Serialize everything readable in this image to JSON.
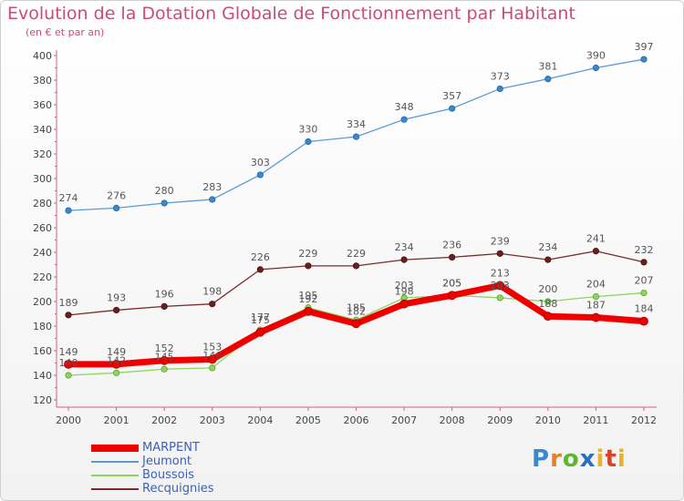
{
  "title": "Evolution de la Dotation Globale de Fonctionnement par Habitant",
  "subtitle": "(en € et par an)",
  "logo": "Proxiti",
  "chart_data": {
    "type": "line",
    "categories": [
      "2000",
      "2001",
      "2002",
      "2003",
      "2004",
      "2005",
      "2006",
      "2007",
      "2008",
      "2009",
      "2010",
      "2011",
      "2012"
    ],
    "ylim": [
      120,
      400
    ],
    "yticks": [
      120,
      140,
      160,
      180,
      200,
      220,
      240,
      260,
      280,
      300,
      320,
      340,
      360,
      380,
      400
    ],
    "grid": false,
    "legend_position": "bottom-left",
    "series": [
      {
        "name": "MARPENT",
        "color": "#ee0000",
        "values": [
          149,
          149,
          152,
          153,
          175,
          192,
          182,
          198,
          205,
          213,
          188,
          187,
          184
        ]
      },
      {
        "name": "Jeumont",
        "color": "#5a9bd4",
        "values": [
          274,
          276,
          280,
          283,
          303,
          330,
          334,
          348,
          357,
          373,
          381,
          390,
          397
        ]
      },
      {
        "name": "Boussois",
        "color": "#8ed560",
        "values": [
          140,
          142,
          145,
          146,
          177,
          195,
          185,
          203,
          205,
          203,
          200,
          204,
          207
        ]
      },
      {
        "name": "Recquignies",
        "color": "#7a2b2b",
        "values": [
          189,
          193,
          196,
          198,
          226,
          229,
          229,
          234,
          236,
          239,
          234,
          241,
          232
        ]
      }
    ]
  }
}
